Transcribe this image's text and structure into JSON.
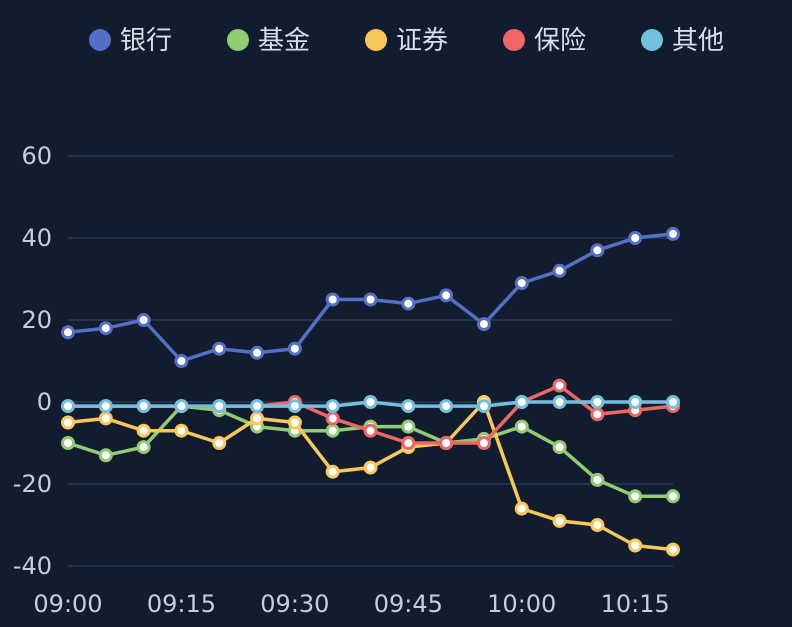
{
  "chart_data": {
    "type": "line",
    "x": [
      "09:00",
      "09:05",
      "09:10",
      "09:15",
      "09:20",
      "09:25",
      "09:30",
      "09:35",
      "09:40",
      "09:45",
      "09:50",
      "09:55",
      "10:00",
      "10:05",
      "10:10",
      "10:15",
      "10:20"
    ],
    "x_tick_labels": [
      "09:00",
      "09:15",
      "09:30",
      "09:45",
      "10:00",
      "10:15"
    ],
    "y_ticks": [
      60,
      40,
      20,
      0,
      -20,
      -40
    ],
    "ylim": [
      -42,
      60
    ],
    "grid": true,
    "legend_position": "top",
    "series": [
      {
        "name": "银行",
        "color": "#5470c6",
        "values": [
          17,
          18,
          20,
          10,
          13,
          12,
          13,
          25,
          25,
          24,
          26,
          19,
          29,
          32,
          37,
          40,
          41
        ]
      },
      {
        "name": "基金",
        "color": "#91cc75",
        "values": [
          -10,
          -13,
          -11,
          -1,
          -2,
          -6,
          -7,
          -7,
          -6,
          -6,
          -10,
          -9,
          -6,
          -11,
          -19,
          -23,
          -23
        ]
      },
      {
        "name": "证券",
        "color": "#fac858",
        "values": [
          -5,
          -4,
          -7,
          -7,
          -10,
          -4,
          -5,
          -17,
          -16,
          -11,
          -10,
          0,
          -26,
          -29,
          -30,
          -35,
          -36
        ]
      },
      {
        "name": "保险",
        "color": "#ee6666",
        "values": [
          -1,
          -1,
          -1,
          -1,
          -1,
          -1,
          0,
          -4,
          -7,
          -10,
          -10,
          -10,
          0,
          4,
          -3,
          -2,
          -1
        ]
      },
      {
        "name": "其他",
        "color": "#73c0de",
        "values": [
          -1,
          -1,
          -1,
          -1,
          -1,
          -1,
          -1,
          -1,
          0,
          -1,
          -1,
          -1,
          0,
          0,
          0,
          0,
          0
        ]
      }
    ]
  }
}
